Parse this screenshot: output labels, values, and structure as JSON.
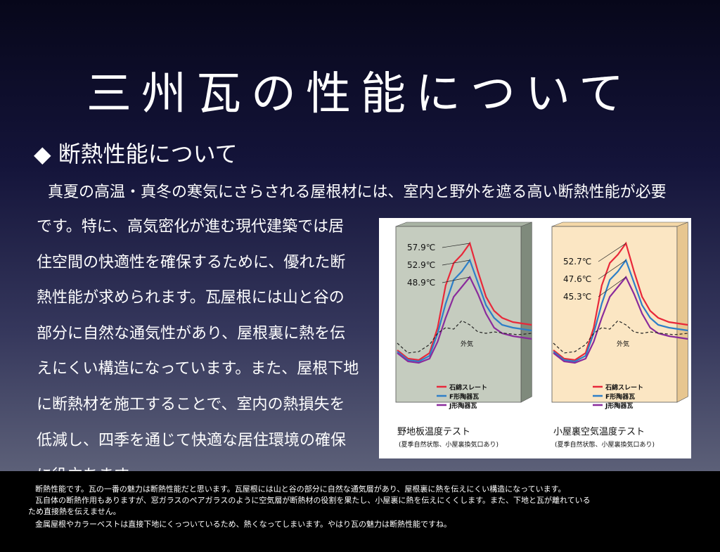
{
  "slide": {
    "title": "三州瓦の性能について",
    "subtitle_marker": "◆",
    "subtitle": "断熱性能について",
    "body_first_line": "真夏の高温・真冬の寒気にさらされる屋根材には、室内と野外を遮る高い断熱性能が必要",
    "body_lines": [
      "です。特に、高気密化が進む現代建築では居",
      "住空間の快適性を確保するために、優れた断",
      "熱性能が求められます。瓦屋根には山と谷の",
      "部分に自然な通気性があり、屋根裏に熱を伝",
      "えにくい構造になっています。また、屋根下地",
      "に断熱材を施工することで、室内の熱損失を",
      "低減し、四季を通じて快適な居住環境の確保",
      "に役立ちます。"
    ]
  },
  "chart_data": [
    {
      "type": "line",
      "title": "野地板温度テスト",
      "subtitle": "(夏季自然状態、小屋裏換気口あり)",
      "annotations": [
        "57.9℃",
        "52.9℃",
        "48.9℃"
      ],
      "outside_label": "外気",
      "panel_color": "#c5ccbf",
      "series": [
        {
          "name": "石綿スレート",
          "color": "#e8283a",
          "peak": "57.9℃"
        },
        {
          "name": "F形陶器瓦",
          "color": "#2e7fc8",
          "peak": "52.9℃"
        },
        {
          "name": "J形陶器瓦",
          "color": "#8a2b9c",
          "peak": "48.9℃"
        },
        {
          "name": "外気",
          "color": "#222222"
        }
      ]
    },
    {
      "type": "line",
      "title": "小屋裏空気温度テスト",
      "subtitle": "(夏季自然状態、小屋裏換気口あり)",
      "annotations": [
        "52.7℃",
        "47.6℃",
        "45.3℃"
      ],
      "outside_label": "外気",
      "panel_color": "#fbe6c3",
      "series": [
        {
          "name": "石綿スレート",
          "color": "#e8283a",
          "peak": "52.7℃"
        },
        {
          "name": "F形陶器瓦",
          "color": "#2e7fc8",
          "peak": "47.6℃"
        },
        {
          "name": "J形陶器瓦",
          "color": "#8a2b9c",
          "peak": "45.3℃"
        },
        {
          "name": "外気",
          "color": "#222222"
        }
      ]
    }
  ],
  "notes": [
    "断熱性能です。瓦の一番の魅力は断熱性能だと思います。瓦屋根には山と谷の部分に自然な通気層があり、屋根裏に熱を伝えにくい構造になっています。",
    "瓦自体の断熱作用もありますが、窓ガラスのペアガラスのように空気層が断熱材の役割を果たし、小屋裏に熱を伝えにくくします。また、下地と瓦が離れている",
    "ため直接熱を伝えません。",
    "金属屋根やカラーベストは直接下地にくっついているため、熱くなってしまいます。やはり瓦の魅力は断熱性能ですね。"
  ]
}
